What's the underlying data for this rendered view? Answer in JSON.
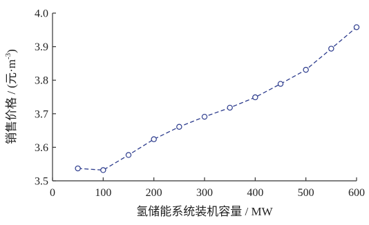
{
  "chart_data": {
    "type": "line",
    "title": "",
    "xlabel": "氢储能系统装机容量 / MW",
    "ylabel_main": "销售价格 / (元·m",
    "ylabel_sup": "-3",
    "ylabel_end": ")",
    "xlim": [
      0,
      600
    ],
    "ylim": [
      3.5,
      4.0
    ],
    "xticks": [
      0,
      100,
      200,
      300,
      400,
      500,
      600
    ],
    "yticks": [
      "3.5",
      "3.6",
      "3.7",
      "3.8",
      "3.9",
      "4.0"
    ],
    "grid": false,
    "legend": "none",
    "series": [
      {
        "color": "#2b3a8c",
        "line_style": "dashed",
        "marker": "open-circle",
        "x": [
          50,
          100,
          150,
          200,
          250,
          300,
          350,
          400,
          450,
          500,
          550,
          600
        ],
        "y": [
          3.537,
          3.532,
          3.577,
          3.624,
          3.661,
          3.691,
          3.718,
          3.749,
          3.789,
          3.831,
          3.894,
          3.958
        ]
      }
    ]
  }
}
